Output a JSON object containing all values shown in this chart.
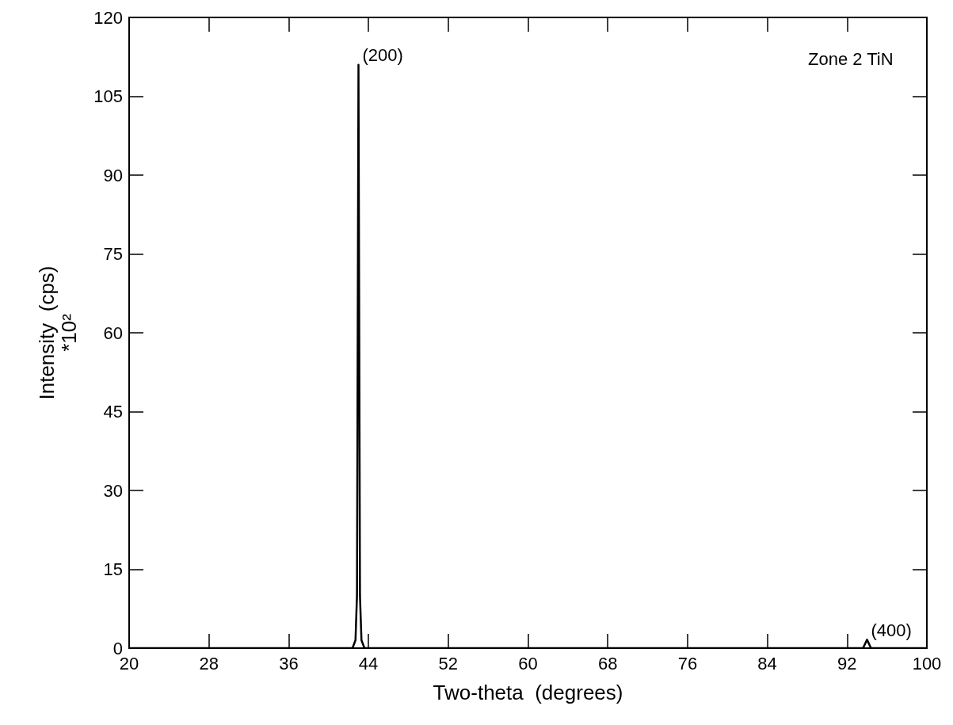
{
  "chart_data": {
    "type": "line",
    "xlabel": "Two-theta  (degrees)",
    "ylabel": "Intensity  (cps)\n*10²",
    "series": [
      {
        "color": "#000000",
        "x": [
          20,
          42.4,
          42.7,
          42.85,
          43.0,
          43.15,
          43.3,
          43.6,
          93.6,
          94.0,
          94.4,
          100
        ],
        "values": [
          0,
          0,
          1.5,
          10,
          111,
          10,
          1.5,
          0,
          0,
          1.6,
          0,
          0
        ]
      }
    ],
    "xlim": [
      20,
      100
    ],
    "xticks": [
      20,
      28,
      36,
      44,
      52,
      60,
      68,
      76,
      84,
      92,
      100
    ],
    "ylim": [
      0,
      120
    ],
    "yticks": [
      0,
      15,
      30,
      45,
      60,
      75,
      90,
      105,
      120
    ],
    "annotations": [
      {
        "text": "(200)",
        "x": 43.0,
        "y": 111
      },
      {
        "text": "(400)",
        "x": 94.0,
        "y": 1.6
      },
      "Zone 2 TiN"
    ],
    "marker": "none",
    "line_style": "solid",
    "grid": false
  }
}
